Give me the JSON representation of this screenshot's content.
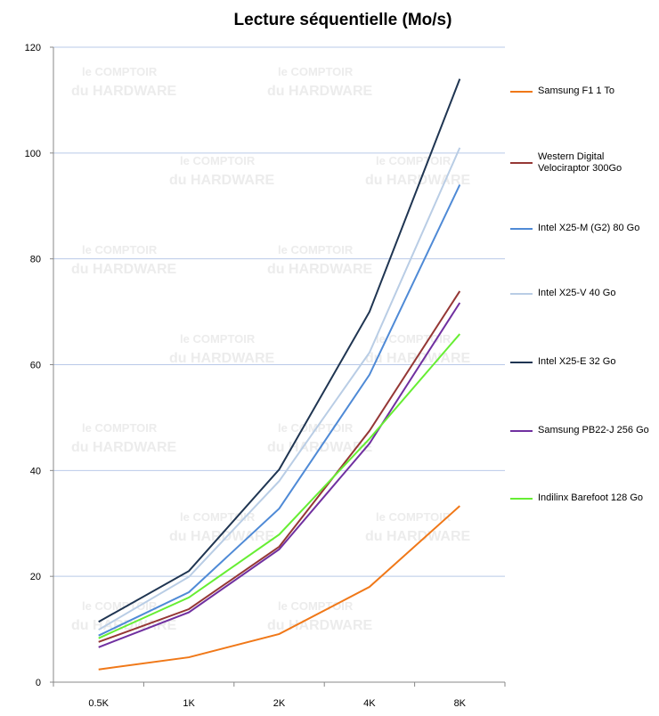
{
  "chart_data": {
    "type": "line",
    "title": "Lecture séquentielle (Mo/s)",
    "xlabel": "",
    "ylabel": "",
    "categories": [
      "0.5K",
      "1K",
      "2K",
      "4K",
      "8K"
    ],
    "ylim": [
      0,
      120
    ],
    "yticks": [
      0,
      20,
      40,
      60,
      80,
      100,
      120
    ],
    "grid": true,
    "legend_position": "right",
    "series": [
      {
        "name": "Samsung F1 1 To",
        "color": "#f07818",
        "values": [
          2.4,
          4.7,
          9.1,
          18.0,
          33.3
        ]
      },
      {
        "name": "Western Digital Velociraptor 300Go",
        "color": "#953735",
        "values": [
          7.6,
          13.8,
          25.6,
          47.5,
          73.9
        ]
      },
      {
        "name": "Intel X25-M (G2) 80 Go",
        "color": "#4f8ad6",
        "values": [
          8.8,
          17.0,
          32.8,
          58.1,
          94.0
        ]
      },
      {
        "name": "Intel X25-V 40 Go",
        "color": "#b9cde5",
        "values": [
          9.9,
          19.9,
          38.0,
          62.3,
          101.0
        ]
      },
      {
        "name": "Intel X25-E 32 Go",
        "color": "#1f3552",
        "values": [
          11.4,
          21.0,
          40.2,
          70.0,
          114.0
        ]
      },
      {
        "name": "Samsung PB22-J 256 Go",
        "color": "#7030a0",
        "values": [
          6.6,
          13.2,
          25.1,
          45.1,
          71.7
        ]
      },
      {
        "name": "Indilinx Barefoot 128 Go",
        "color": "#66ee33",
        "values": [
          8.3,
          16.0,
          27.9,
          46.0,
          65.8
        ]
      }
    ]
  },
  "watermark": {
    "line1": "le COMPTOIR",
    "line2": "du HARDWARE"
  }
}
